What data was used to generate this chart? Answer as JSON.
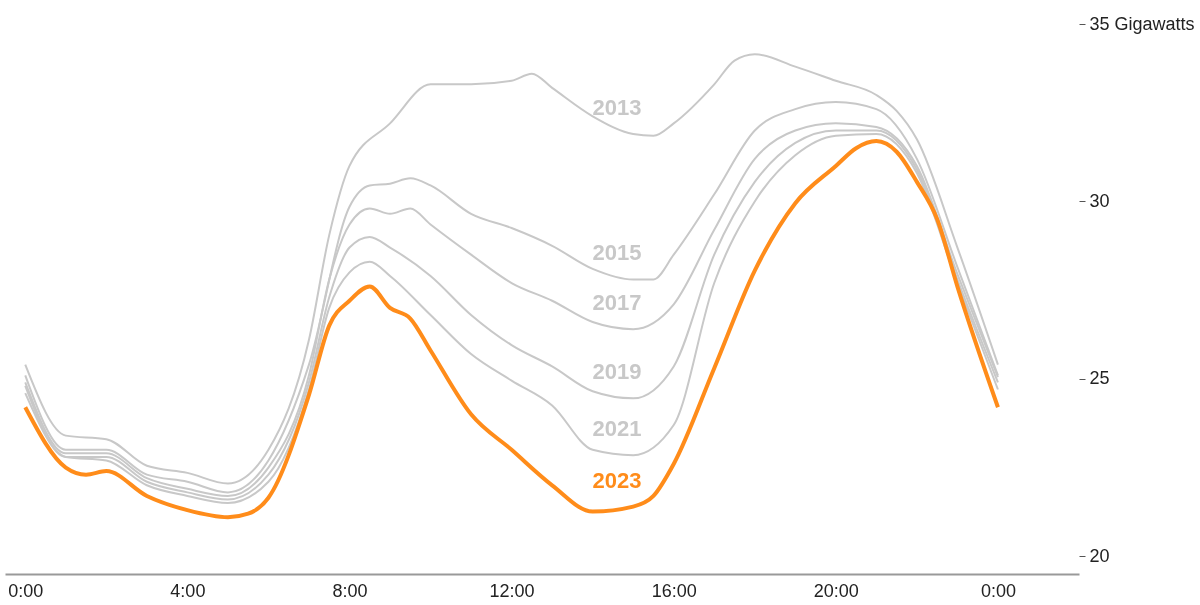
{
  "chart_data": {
    "type": "line",
    "xlim": [
      -0.5,
      26
    ],
    "ylim": [
      19.5,
      35
    ],
    "xticks": [
      {
        "value": 0,
        "label": "0:00"
      },
      {
        "value": 4,
        "label": "4:00"
      },
      {
        "value": 8,
        "label": "8:00"
      },
      {
        "value": 12,
        "label": "12:00"
      },
      {
        "value": 16,
        "label": "16:00"
      },
      {
        "value": 20,
        "label": "20:00"
      },
      {
        "value": 24,
        "label": "0:00"
      }
    ],
    "yticks": [
      20,
      25,
      30,
      {
        "value": 35,
        "label": "35 Gigawatts"
      }
    ],
    "grid": false,
    "series": [
      {
        "name": "2013",
        "color": "#c8c8c8",
        "x": [
          0,
          1,
          2,
          3,
          4,
          5,
          6,
          7,
          7.5,
          8,
          9,
          10,
          11,
          12,
          12.5,
          13,
          14,
          15,
          15.5,
          16,
          17,
          17.5,
          18,
          19,
          20,
          21,
          21.5,
          22,
          23,
          24
        ],
        "values": [
          25.4,
          23.4,
          23.3,
          22.55,
          22.35,
          22.05,
          23.0,
          26.1,
          29.05,
          31.0,
          32.2,
          33.3,
          33.3,
          33.4,
          33.6,
          33.2,
          32.4,
          31.9,
          31.85,
          32.2,
          33.3,
          33.97,
          34.15,
          33.8,
          33.4,
          33.0,
          32.55,
          31.75,
          28.7,
          25.4
        ]
      },
      {
        "name": "2015",
        "color": "#c8c8c8",
        "x": [
          0,
          1,
          2,
          3,
          4,
          5,
          6,
          7,
          8,
          8.5,
          9,
          9.5,
          10,
          11,
          12,
          13,
          14,
          15,
          15.5,
          16,
          17,
          18,
          19,
          20,
          21,
          22,
          23,
          24
        ],
        "values": [
          25.1,
          23.0,
          23.0,
          22.3,
          22.1,
          21.8,
          22.7,
          25.4,
          29.85,
          30.45,
          30.5,
          30.65,
          30.45,
          29.65,
          29.25,
          28.75,
          28.1,
          27.8,
          27.8,
          28.5,
          30.2,
          32.0,
          32.6,
          32.8,
          32.6,
          31.2,
          28.15,
          25.1
        ]
      },
      {
        "name": "2017",
        "color": "#c8c8c8",
        "x": [
          0,
          1,
          2,
          3,
          4,
          5,
          6,
          7,
          7.5,
          8,
          8.5,
          9,
          9.5,
          10,
          11,
          12,
          13,
          14,
          15,
          16,
          17,
          18,
          19,
          20,
          21,
          22,
          23,
          24
        ],
        "values": [
          24.9,
          22.9,
          22.9,
          22.2,
          21.9,
          21.7,
          22.5,
          25.1,
          27.8,
          29.35,
          29.8,
          29.65,
          29.8,
          29.35,
          28.5,
          27.7,
          27.2,
          26.6,
          26.4,
          27.1,
          29.2,
          31.2,
          32.0,
          32.2,
          32.1,
          31.0,
          27.95,
          25.05
        ]
      },
      {
        "name": "2019",
        "color": "#c8c8c8",
        "x": [
          0,
          1,
          2,
          3,
          4,
          5,
          6,
          7,
          7.5,
          8,
          8.5,
          9,
          10,
          11,
          12,
          13,
          14,
          15,
          16,
          17,
          18,
          19,
          20,
          21,
          22,
          23,
          24
        ],
        "values": [
          24.8,
          22.8,
          22.8,
          22.1,
          21.8,
          21.6,
          22.3,
          24.9,
          27.3,
          28.7,
          29.0,
          28.7,
          27.9,
          26.8,
          25.95,
          25.35,
          24.65,
          24.45,
          25.35,
          28.5,
          30.55,
          31.65,
          32.0,
          32.0,
          30.9,
          27.8,
          24.9
        ]
      },
      {
        "name": "2021",
        "color": "#c8c8c8",
        "x": [
          0,
          1,
          2,
          3,
          4,
          5,
          6,
          7,
          7.5,
          8,
          8.5,
          9,
          10,
          11,
          12,
          13,
          14,
          15,
          16,
          17,
          18,
          19,
          20,
          21,
          22,
          23,
          24
        ],
        "values": [
          24.6,
          22.8,
          22.7,
          22.0,
          21.7,
          21.5,
          22.1,
          24.7,
          27.0,
          28.0,
          28.3,
          27.9,
          26.8,
          25.7,
          24.95,
          24.25,
          23.0,
          22.85,
          23.7,
          27.7,
          30.0,
          31.3,
          31.85,
          31.9,
          30.8,
          27.7,
          24.7
        ]
      },
      {
        "name": "2023",
        "color": "#ff8c1a",
        "x": [
          0,
          1,
          1.5,
          2,
          3,
          4,
          5,
          5.5,
          6,
          7,
          7.5,
          8,
          8.5,
          9,
          9.5,
          10,
          11,
          12,
          13,
          14,
          15,
          15.5,
          16,
          17,
          18,
          19,
          20,
          20.5,
          21,
          21.5,
          22,
          22.5,
          23,
          24
        ],
        "values": [
          24.2,
          22.5,
          22.3,
          22.4,
          21.7,
          21.3,
          21.1,
          21.2,
          21.65,
          24.55,
          26.5,
          27.2,
          27.6,
          27.0,
          26.7,
          25.8,
          24.0,
          23.0,
          22.0,
          21.26,
          21.4,
          21.7,
          22.6,
          25.3,
          28.05,
          29.95,
          31.0,
          31.5,
          31.7,
          31.4,
          30.55,
          29.5,
          27.6,
          24.2
        ]
      }
    ]
  }
}
